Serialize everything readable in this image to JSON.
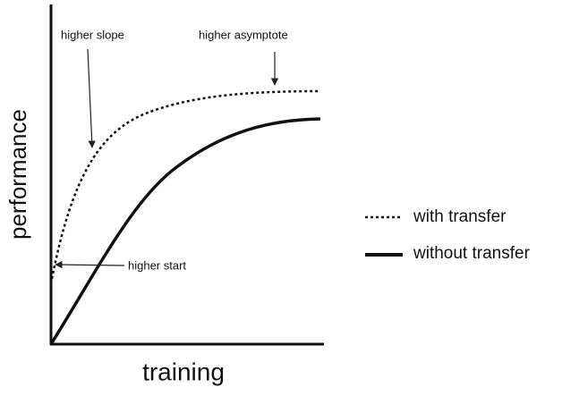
{
  "axes": {
    "x_label": "training",
    "y_label": "performance"
  },
  "annotations": {
    "slope": "higher slope",
    "asymptote": "higher asymptote",
    "start": "higher start"
  },
  "legend": [
    {
      "name": "with transfer"
    },
    {
      "name": "without transfer"
    }
  ]
}
